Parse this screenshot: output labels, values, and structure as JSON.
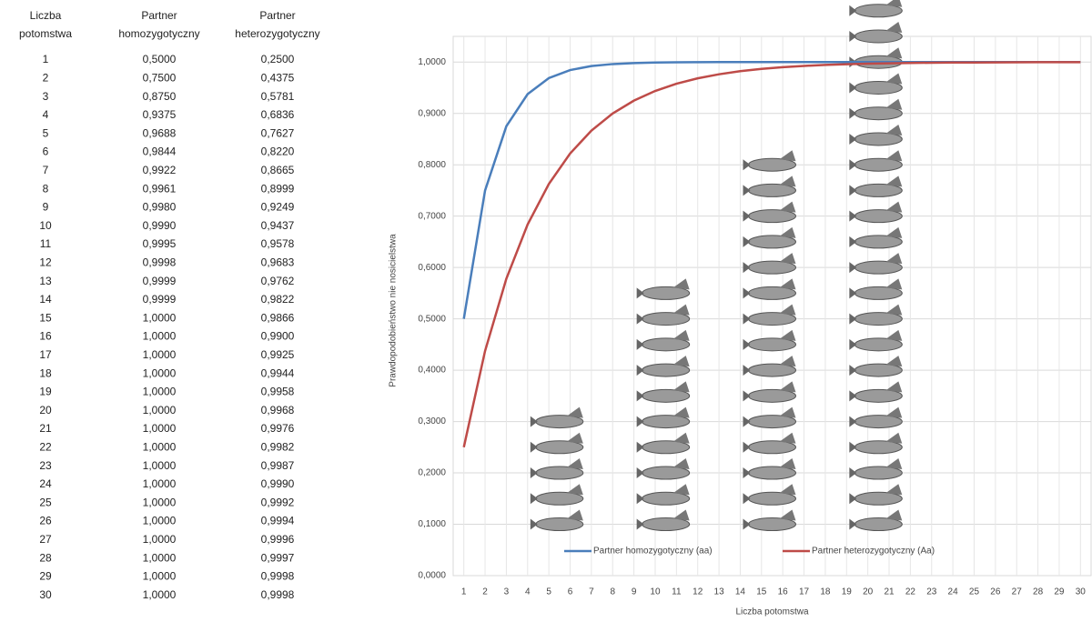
{
  "table": {
    "header": [
      "Liczba potomstwa",
      "Partner homozygotyczny",
      "Partner heterozygotyczny"
    ],
    "rows": [
      [
        "1",
        "0,5000",
        "0,2500"
      ],
      [
        "2",
        "0,7500",
        "0,4375"
      ],
      [
        "3",
        "0,8750",
        "0,5781"
      ],
      [
        "4",
        "0,9375",
        "0,6836"
      ],
      [
        "5",
        "0,9688",
        "0,7627"
      ],
      [
        "6",
        "0,9844",
        "0,8220"
      ],
      [
        "7",
        "0,9922",
        "0,8665"
      ],
      [
        "8",
        "0,9961",
        "0,8999"
      ],
      [
        "9",
        "0,9980",
        "0,9249"
      ],
      [
        "10",
        "0,9990",
        "0,9437"
      ],
      [
        "11",
        "0,9995",
        "0,9578"
      ],
      [
        "12",
        "0,9998",
        "0,9683"
      ],
      [
        "13",
        "0,9999",
        "0,9762"
      ],
      [
        "14",
        "0,9999",
        "0,9822"
      ],
      [
        "15",
        "1,0000",
        "0,9866"
      ],
      [
        "16",
        "1,0000",
        "0,9900"
      ],
      [
        "17",
        "1,0000",
        "0,9925"
      ],
      [
        "18",
        "1,0000",
        "0,9944"
      ],
      [
        "19",
        "1,0000",
        "0,9958"
      ],
      [
        "20",
        "1,0000",
        "0,9968"
      ],
      [
        "21",
        "1,0000",
        "0,9976"
      ],
      [
        "22",
        "1,0000",
        "0,9982"
      ],
      [
        "23",
        "1,0000",
        "0,9987"
      ],
      [
        "24",
        "1,0000",
        "0,9990"
      ],
      [
        "25",
        "1,0000",
        "0,9992"
      ],
      [
        "26",
        "1,0000",
        "0,9994"
      ],
      [
        "27",
        "1,0000",
        "0,9996"
      ],
      [
        "28",
        "1,0000",
        "0,9997"
      ],
      [
        "29",
        "1,0000",
        "0,9998"
      ],
      [
        "30",
        "1,0000",
        "0,9998"
      ]
    ]
  },
  "chart_data": {
    "type": "line",
    "x_label": "Liczba potomstwa",
    "y_label": "Prawdopodobieństwo nie nosicielstwa",
    "x": [
      1,
      2,
      3,
      4,
      5,
      6,
      7,
      8,
      9,
      10,
      11,
      12,
      13,
      14,
      15,
      16,
      17,
      18,
      19,
      20,
      21,
      22,
      23,
      24,
      25,
      26,
      27,
      28,
      29,
      30
    ],
    "series": [
      {
        "name": "Partner homozygotyczny (aa)",
        "color": "#4a7ebb",
        "values": [
          0.5,
          0.75,
          0.875,
          0.9375,
          0.9688,
          0.9844,
          0.9922,
          0.9961,
          0.998,
          0.999,
          0.9995,
          0.9998,
          0.9999,
          0.9999,
          1,
          1,
          1,
          1,
          1,
          1,
          1,
          1,
          1,
          1,
          1,
          1,
          1,
          1,
          1,
          1
        ]
      },
      {
        "name": "Partner heterozygotyczny (Aa)",
        "color": "#be4b48",
        "values": [
          0.25,
          0.4375,
          0.5781,
          0.6836,
          0.7627,
          0.822,
          0.8665,
          0.8999,
          0.9249,
          0.9437,
          0.9578,
          0.9683,
          0.9762,
          0.9822,
          0.9866,
          0.99,
          0.9925,
          0.9944,
          0.9958,
          0.9968,
          0.9976,
          0.9982,
          0.9987,
          0.999,
          0.9992,
          0.9994,
          0.9996,
          0.9997,
          0.9998,
          0.9998
        ]
      }
    ],
    "xlim": [
      0.5,
      30.5
    ],
    "xticks": [
      1,
      2,
      3,
      4,
      5,
      6,
      7,
      8,
      9,
      10,
      11,
      12,
      13,
      14,
      15,
      16,
      17,
      18,
      19,
      20,
      21,
      22,
      23,
      24,
      25,
      26,
      27,
      28,
      29,
      30
    ],
    "ylim": [
      0,
      1.05
    ],
    "yticks": [
      {
        "value": 0,
        "label": "0,0000"
      },
      {
        "value": 0.1,
        "label": "0,1000"
      },
      {
        "value": 0.2,
        "label": "0,2000"
      },
      {
        "value": 0.3,
        "label": "0,3000"
      },
      {
        "value": 0.4,
        "label": "0,4000"
      },
      {
        "value": 0.5,
        "label": "0,5000"
      },
      {
        "value": 0.6,
        "label": "0,6000"
      },
      {
        "value": 0.7,
        "label": "0,7000"
      },
      {
        "value": 0.8,
        "label": "0,8000"
      },
      {
        "value": 0.9,
        "label": "0,9000"
      },
      {
        "value": 1,
        "label": "1,0000"
      }
    ],
    "grid": true,
    "legend": "bottom"
  }
}
